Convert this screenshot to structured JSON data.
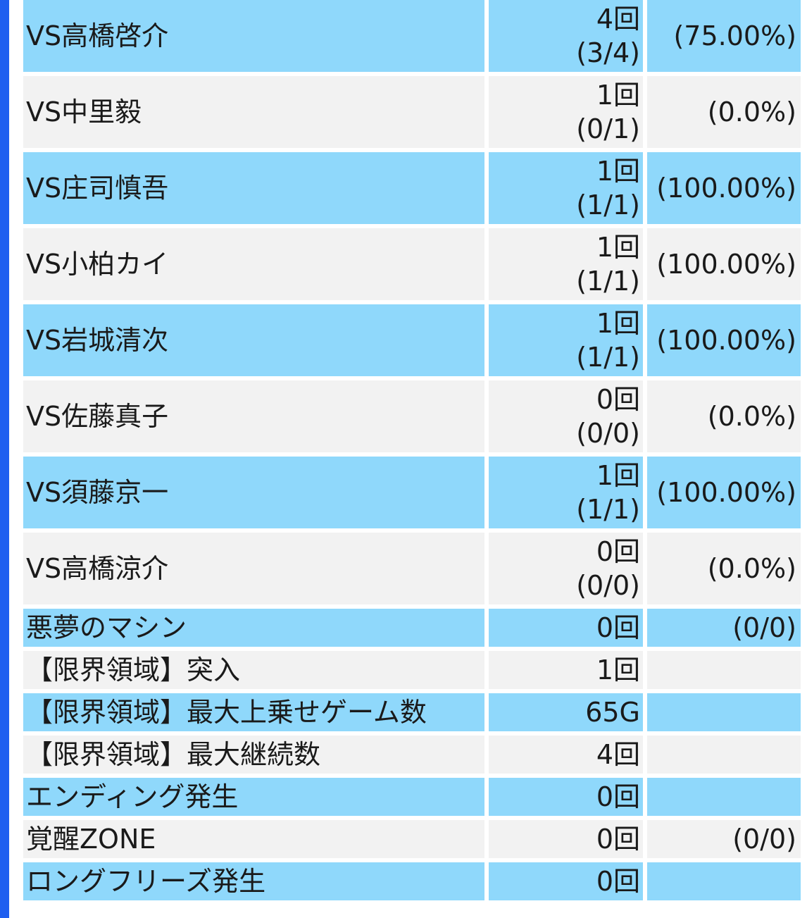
{
  "colors": {
    "accent_bar": "#1f5ff0",
    "row_blue": "#8fd8fb",
    "row_gray": "#f2f2f2"
  },
  "rows": [
    {
      "label": "VS高橋啓介",
      "count": "4回",
      "ratio": "(3/4)",
      "rate": "(75.00%)"
    },
    {
      "label": "VS中里毅",
      "count": "1回",
      "ratio": "(0/1)",
      "rate": "(0.0%)"
    },
    {
      "label": "VS庄司慎吾",
      "count": "1回",
      "ratio": "(1/1)",
      "rate": "(100.00%)"
    },
    {
      "label": "VS小柏カイ",
      "count": "1回",
      "ratio": "(1/1)",
      "rate": "(100.00%)"
    },
    {
      "label": "VS岩城清次",
      "count": "1回",
      "ratio": "(1/1)",
      "rate": "(100.00%)"
    },
    {
      "label": "VS佐藤真子",
      "count": "0回",
      "ratio": "(0/0)",
      "rate": "(0.0%)"
    },
    {
      "label": "VS須藤京一",
      "count": "1回",
      "ratio": "(1/1)",
      "rate": "(100.00%)"
    },
    {
      "label": "VS高橋涼介",
      "count": "0回",
      "ratio": "(0/0)",
      "rate": "(0.0%)"
    },
    {
      "label": "悪夢のマシン",
      "count": "0回",
      "rate": "(0/0)"
    },
    {
      "label": "【限界領域】突入",
      "count": "1回",
      "rate": ""
    },
    {
      "label": "【限界領域】最大上乗せゲーム数",
      "count": "65G",
      "rate": ""
    },
    {
      "label": "【限界領域】最大継続数",
      "count": "4回",
      "rate": ""
    },
    {
      "label": "エンディング発生",
      "count": "0回",
      "rate": ""
    },
    {
      "label": "覚醒ZONE",
      "count": "0回",
      "rate": "(0/0)"
    },
    {
      "label": "ロングフリーズ発生",
      "count": "0回",
      "rate": ""
    }
  ]
}
